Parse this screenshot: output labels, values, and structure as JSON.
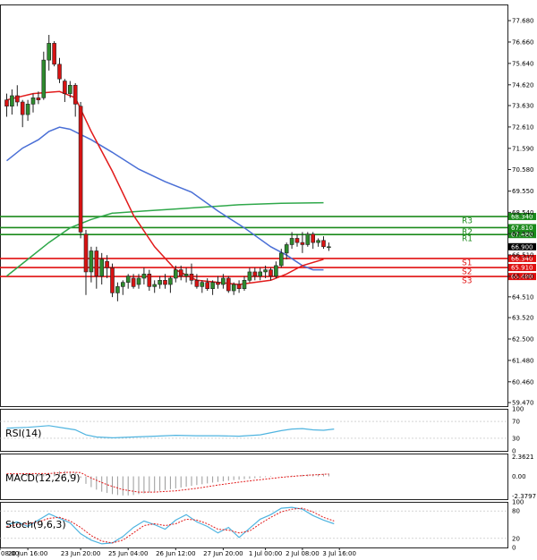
{
  "chart_data": {
    "type": "candlestick",
    "price": {
      "y_ticks": [
        "77.680",
        "76.660",
        "75.640",
        "74.620",
        "73.630",
        "72.610",
        "71.590",
        "70.580",
        "69.550",
        "68.540",
        "67.520",
        "66.510",
        "65.490",
        "64.510",
        "63.520",
        "62.500",
        "61.480",
        "60.460",
        "59.470"
      ],
      "ylim": [
        59.3,
        78.45
      ],
      "current": {
        "value": 66.9,
        "label": "66.900"
      },
      "levels": [
        {
          "name": "R3",
          "value": 68.34,
          "label": "68.340",
          "color": "#1b8a1b"
        },
        {
          "name": "R2",
          "value": 67.81,
          "label": "67.810",
          "color": "#1b8a1b"
        },
        {
          "name": "R1",
          "value": 67.48,
          "label": "67.480",
          "color": "#1b8a1b"
        },
        {
          "name": "S1",
          "value": 66.34,
          "label": "66.340",
          "color": "#e01010"
        },
        {
          "name": "S2",
          "value": 65.91,
          "label": "65.910",
          "color": "#e01010"
        },
        {
          "name": "S3",
          "value": 65.48,
          "label": "65.480",
          "color": "#e01010"
        }
      ],
      "candles": [
        [
          73.9,
          74.2,
          73.1,
          73.6
        ],
        [
          73.6,
          74.4,
          73.2,
          74.1
        ],
        [
          74.1,
          74.6,
          73.6,
          73.8
        ],
        [
          73.8,
          73.9,
          72.6,
          73.2
        ],
        [
          73.2,
          73.9,
          72.9,
          73.7
        ],
        [
          73.7,
          74.2,
          73.3,
          74.0
        ],
        [
          74.0,
          74.3,
          73.7,
          73.9
        ],
        [
          74.0,
          76.2,
          73.9,
          75.8
        ],
        [
          75.8,
          77.0,
          75.3,
          76.6
        ],
        [
          76.6,
          76.7,
          75.5,
          75.6
        ],
        [
          75.6,
          75.9,
          74.7,
          74.9
        ],
        [
          74.8,
          74.9,
          73.8,
          74.2
        ],
        [
          74.2,
          74.8,
          74.0,
          74.6
        ],
        [
          74.6,
          74.7,
          73.1,
          73.7
        ],
        [
          73.6,
          73.8,
          67.3,
          67.6
        ],
        [
          67.5,
          67.7,
          64.6,
          65.7
        ],
        [
          65.7,
          66.9,
          65.2,
          66.7
        ],
        [
          66.7,
          66.9,
          64.9,
          65.5
        ],
        [
          65.5,
          66.6,
          65.1,
          66.3
        ],
        [
          66.2,
          66.5,
          65.4,
          65.9
        ],
        [
          65.9,
          66.1,
          64.5,
          64.7
        ],
        [
          64.7,
          65.2,
          64.3,
          65.0
        ],
        [
          65.0,
          65.3,
          64.6,
          65.2
        ],
        [
          65.2,
          65.6,
          64.9,
          65.5
        ],
        [
          65.4,
          65.6,
          64.9,
          65.0
        ],
        [
          65.1,
          65.6,
          64.9,
          65.4
        ],
        [
          65.4,
          65.9,
          65.1,
          65.6
        ],
        [
          65.6,
          65.8,
          64.8,
          65.0
        ],
        [
          65.0,
          65.3,
          64.7,
          65.1
        ],
        [
          65.1,
          65.5,
          64.9,
          65.3
        ],
        [
          65.3,
          65.6,
          64.9,
          65.1
        ],
        [
          65.1,
          65.5,
          64.7,
          65.4
        ],
        [
          65.4,
          66.0,
          65.2,
          65.8
        ],
        [
          65.8,
          66.0,
          65.3,
          65.5
        ],
        [
          65.5,
          65.9,
          65.2,
          65.6
        ],
        [
          65.6,
          66.1,
          65.1,
          65.3
        ],
        [
          65.3,
          65.6,
          64.9,
          65.0
        ],
        [
          65.0,
          65.3,
          64.7,
          65.2
        ],
        [
          65.2,
          65.4,
          64.8,
          64.9
        ],
        [
          64.9,
          65.3,
          64.6,
          65.2
        ],
        [
          65.2,
          65.5,
          64.9,
          65.1
        ],
        [
          65.1,
          65.6,
          64.9,
          65.4
        ],
        [
          65.4,
          65.5,
          64.7,
          64.8
        ],
        [
          64.8,
          65.2,
          64.6,
          65.1
        ],
        [
          65.1,
          65.3,
          64.7,
          64.9
        ],
        [
          64.9,
          65.5,
          64.8,
          65.3
        ],
        [
          65.3,
          65.9,
          65.2,
          65.7
        ],
        [
          65.7,
          65.9,
          65.3,
          65.5
        ],
        [
          65.5,
          65.9,
          65.3,
          65.7
        ],
        [
          65.7,
          66.0,
          65.4,
          65.8
        ],
        [
          65.8,
          65.9,
          65.3,
          65.5
        ],
        [
          65.5,
          66.2,
          65.4,
          66.0
        ],
        [
          66.0,
          66.8,
          65.9,
          66.6
        ],
        [
          66.6,
          67.1,
          66.3,
          67.0
        ],
        [
          67.0,
          67.6,
          66.8,
          67.3
        ],
        [
          67.3,
          67.5,
          66.9,
          67.1
        ],
        [
          67.1,
          67.6,
          66.6,
          67.0
        ],
        [
          67.0,
          67.6,
          66.9,
          67.5
        ],
        [
          67.5,
          67.6,
          66.8,
          67.1
        ],
        [
          67.1,
          67.3,
          66.9,
          67.2
        ],
        [
          67.2,
          67.4,
          66.8,
          66.9
        ],
        [
          66.9,
          67.1,
          66.7,
          66.9
        ]
      ],
      "ma_red": [
        [
          0,
          73.9
        ],
        [
          5,
          74.2
        ],
        [
          10,
          74.3
        ],
        [
          13,
          74.0
        ],
        [
          16,
          72.4
        ],
        [
          20,
          70.5
        ],
        [
          24,
          68.4
        ],
        [
          28,
          66.9
        ],
        [
          32,
          65.8
        ],
        [
          36,
          65.3
        ],
        [
          44,
          65.1
        ],
        [
          50,
          65.3
        ],
        [
          53,
          65.6
        ],
        [
          56,
          66.0
        ],
        [
          60,
          66.3
        ]
      ],
      "ma_blue": [
        [
          0,
          71.0
        ],
        [
          3,
          71.6
        ],
        [
          6,
          72.0
        ],
        [
          8,
          72.4
        ],
        [
          10,
          72.6
        ],
        [
          12,
          72.5
        ],
        [
          16,
          72.0
        ],
        [
          20,
          71.4
        ],
        [
          25,
          70.6
        ],
        [
          30,
          70.0
        ],
        [
          35,
          69.5
        ],
        [
          40,
          68.6
        ],
        [
          45,
          67.8
        ],
        [
          50,
          66.9
        ],
        [
          53,
          66.5
        ],
        [
          56,
          66.0
        ],
        [
          58,
          65.8
        ],
        [
          60,
          65.8
        ]
      ],
      "ma_green": [
        [
          0,
          65.5
        ],
        [
          4,
          66.3
        ],
        [
          8,
          67.1
        ],
        [
          12,
          67.8
        ],
        [
          16,
          68.2
        ],
        [
          20,
          68.5
        ],
        [
          26,
          68.6
        ],
        [
          32,
          68.7
        ],
        [
          38,
          68.8
        ],
        [
          44,
          68.9
        ],
        [
          52,
          68.97
        ],
        [
          60,
          69.0
        ]
      ]
    },
    "rsi": {
      "label": "RSI(14)",
      "ticks": [
        "100",
        "70",
        "30",
        "0"
      ],
      "ylim": [
        0,
        100
      ],
      "values": [
        [
          0,
          54
        ],
        [
          4,
          56
        ],
        [
          8,
          60
        ],
        [
          11,
          54
        ],
        [
          13,
          50
        ],
        [
          15,
          38
        ],
        [
          17,
          33
        ],
        [
          20,
          31
        ],
        [
          24,
          33
        ],
        [
          28,
          35
        ],
        [
          32,
          37
        ],
        [
          36,
          36
        ],
        [
          40,
          36
        ],
        [
          44,
          35
        ],
        [
          48,
          38
        ],
        [
          52,
          48
        ],
        [
          54,
          52
        ],
        [
          56,
          53
        ],
        [
          58,
          50
        ],
        [
          60,
          49
        ],
        [
          62,
          52
        ]
      ]
    },
    "macd": {
      "label": "MACD(12,26,9)",
      "ticks": [
        "2.3621",
        "0.00",
        "-2.3797"
      ],
      "ylim": [
        -2.75,
        2.75
      ],
      "hist": [
        0.3,
        0.32,
        0.34,
        0.36,
        0.38,
        0.36,
        0.34,
        0.3,
        0.4,
        0.55,
        0.62,
        0.65,
        0.6,
        0.45,
        -0.2,
        -0.9,
        -1.3,
        -1.6,
        -1.85,
        -2.0,
        -2.15,
        -2.25,
        -2.3,
        -2.3,
        -2.25,
        -2.15,
        -2.05,
        -1.95,
        -1.85,
        -1.75,
        -1.65,
        -1.55,
        -1.45,
        -1.35,
        -1.25,
        -1.15,
        -1.05,
        -0.95,
        -0.85,
        -0.75,
        -0.68,
        -0.6,
        -0.52,
        -0.45,
        -0.4,
        -0.34,
        -0.28,
        -0.22,
        -0.16,
        -0.1,
        -0.05,
        0.0,
        0.03,
        0.06,
        0.1,
        0.14,
        0.18,
        0.22,
        0.26,
        0.28,
        0.3,
        0.32
      ],
      "signal": [
        [
          0,
          0.3
        ],
        [
          8,
          0.35
        ],
        [
          12,
          0.5
        ],
        [
          14,
          0.45
        ],
        [
          16,
          -0.2
        ],
        [
          19,
          -1.0
        ],
        [
          22,
          -1.6
        ],
        [
          25,
          -1.9
        ],
        [
          28,
          -1.9
        ],
        [
          32,
          -1.75
        ],
        [
          36,
          -1.45
        ],
        [
          40,
          -1.05
        ],
        [
          44,
          -0.7
        ],
        [
          48,
          -0.4
        ],
        [
          52,
          -0.12
        ],
        [
          56,
          0.1
        ],
        [
          61,
          0.28
        ]
      ]
    },
    "stoch": {
      "label": "Stoch(9,6,3)",
      "ticks": [
        "100",
        "80",
        "20",
        "0"
      ],
      "ylim": [
        0,
        100
      ],
      "k": [
        [
          0,
          50
        ],
        [
          2,
          56
        ],
        [
          4,
          46
        ],
        [
          6,
          60
        ],
        [
          8,
          74
        ],
        [
          10,
          64
        ],
        [
          12,
          54
        ],
        [
          14,
          30
        ],
        [
          16,
          16
        ],
        [
          18,
          8
        ],
        [
          20,
          10
        ],
        [
          22,
          24
        ],
        [
          24,
          44
        ],
        [
          26,
          58
        ],
        [
          28,
          50
        ],
        [
          30,
          40
        ],
        [
          32,
          60
        ],
        [
          34,
          72
        ],
        [
          36,
          56
        ],
        [
          38,
          46
        ],
        [
          40,
          32
        ],
        [
          42,
          44
        ],
        [
          44,
          22
        ],
        [
          46,
          42
        ],
        [
          48,
          62
        ],
        [
          50,
          72
        ],
        [
          52,
          86
        ],
        [
          54,
          88
        ],
        [
          56,
          84
        ],
        [
          58,
          70
        ],
        [
          60,
          60
        ],
        [
          62,
          52
        ]
      ],
      "d": [
        [
          0,
          46
        ],
        [
          2,
          50
        ],
        [
          4,
          52
        ],
        [
          6,
          56
        ],
        [
          8,
          64
        ],
        [
          10,
          66
        ],
        [
          12,
          58
        ],
        [
          14,
          44
        ],
        [
          16,
          26
        ],
        [
          18,
          14
        ],
        [
          20,
          10
        ],
        [
          22,
          16
        ],
        [
          24,
          32
        ],
        [
          26,
          48
        ],
        [
          28,
          52
        ],
        [
          30,
          48
        ],
        [
          32,
          52
        ],
        [
          34,
          62
        ],
        [
          36,
          60
        ],
        [
          38,
          52
        ],
        [
          40,
          40
        ],
        [
          42,
          38
        ],
        [
          44,
          32
        ],
        [
          46,
          36
        ],
        [
          48,
          52
        ],
        [
          50,
          66
        ],
        [
          52,
          78
        ],
        [
          54,
          84
        ],
        [
          56,
          86
        ],
        [
          58,
          78
        ],
        [
          60,
          66
        ],
        [
          62,
          58
        ]
      ]
    },
    "x_ticks": [
      {
        "label": "08:00",
        "index": -1
      },
      {
        "label": "20 Jun 16:00",
        "index": 4
      },
      {
        "label": "23 Jun 20:00",
        "index": 14
      },
      {
        "label": "25 Jun 04:00",
        "index": 23
      },
      {
        "label": "26 Jun 12:00",
        "index": 32
      },
      {
        "label": "27 Jun 20:00",
        "index": 41
      },
      {
        "label": "1 Jul 00:00",
        "index": 49
      },
      {
        "label": "2 Jul 08:00",
        "index": 56
      },
      {
        "label": "3 Jul 16:00",
        "index": 63
      }
    ],
    "colors": {
      "bull": "#2e8b2e",
      "bear": "#d81313",
      "ma_red": "#e21b1b",
      "ma_blue": "#4a6fd6",
      "ma_green": "#2fa84a",
      "indicator": "#4fb4e0",
      "macd_hist": "#9a9a9a",
      "signal": "#e21b1b",
      "stoch_d": "#e21b1b",
      "current_badge": "#000000"
    }
  }
}
